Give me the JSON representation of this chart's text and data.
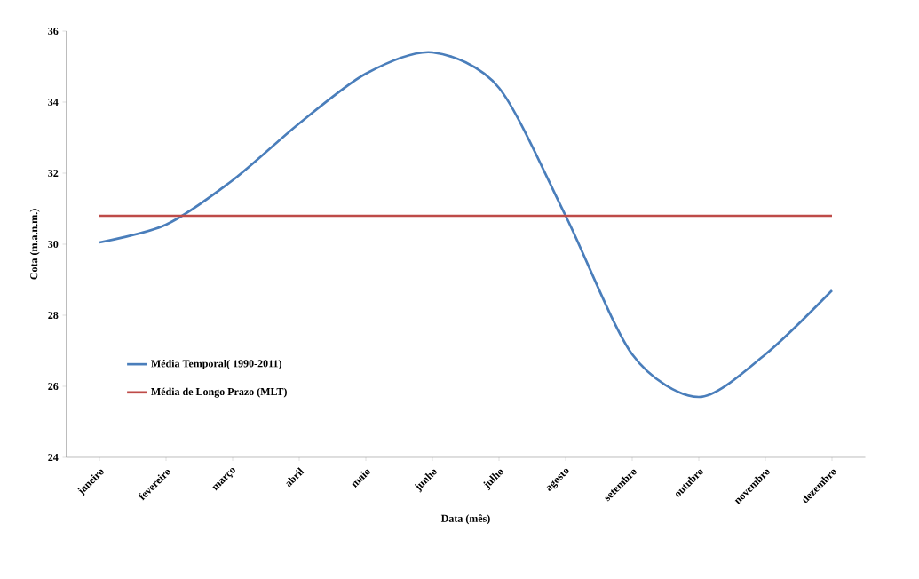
{
  "chart_data": {
    "type": "line",
    "xlabel": "Data (mês)",
    "ylabel": "Cota (m.a.n.m.)",
    "categories": [
      "janeiro",
      "fevereiro",
      "março",
      "abril",
      "maio",
      "junho",
      "julho",
      "agosto",
      "setembro",
      "outubro",
      "novembro",
      "dezembro"
    ],
    "series": [
      {
        "name": "Média Temporal( 1990-2011)",
        "color": "#4a7ebb",
        "values": [
          30.05,
          30.55,
          31.8,
          33.4,
          34.8,
          35.4,
          34.4,
          30.8,
          26.9,
          25.7,
          26.9,
          28.7
        ]
      },
      {
        "name": "Média de Longo Prazo (MLT)",
        "color": "#be4b48",
        "values": [
          30.8,
          30.8,
          30.8,
          30.8,
          30.8,
          30.8,
          30.8,
          30.8,
          30.8,
          30.8,
          30.8,
          30.8
        ]
      }
    ],
    "ylim": [
      24,
      36
    ],
    "yticks": [
      24,
      26,
      28,
      30,
      32,
      34,
      36
    ],
    "grid": false,
    "legend": "bottom left",
    "marker": "none",
    "line_style": "solid"
  }
}
